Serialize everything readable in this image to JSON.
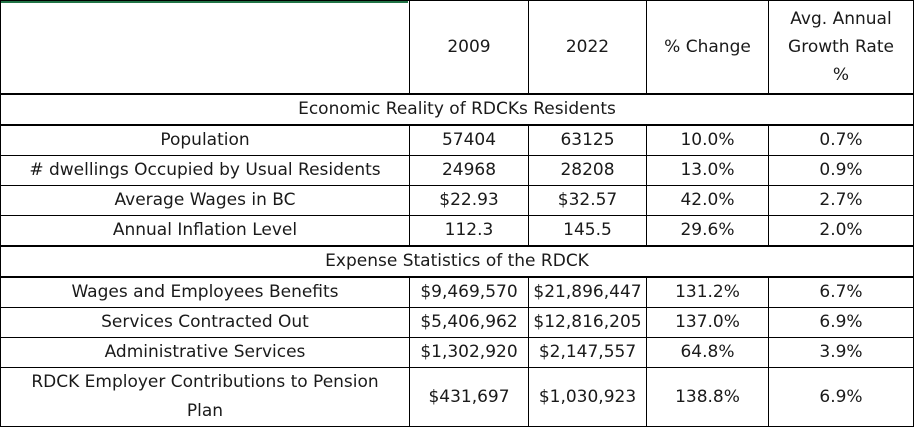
{
  "headers": {
    "label": "",
    "col2009": "2009",
    "col2022": "2022",
    "change": "% Change",
    "growth": "Avg. Annual Growth Rate %"
  },
  "section1": {
    "title": "Economic Reality of RDCKs Residents",
    "rows": [
      {
        "label": "Population",
        "v2009": "57404",
        "v2022": "63125",
        "change": "10.0%",
        "growth": "0.7%"
      },
      {
        "label": "# dwellings Occupied by Usual Residents",
        "v2009": "24968",
        "v2022": "28208",
        "change": "13.0%",
        "growth": "0.9%"
      },
      {
        "label": "Average Wages in BC",
        "v2009": "$22.93",
        "v2022": "$32.57",
        "change": "42.0%",
        "growth": "2.7%"
      },
      {
        "label": "Annual Inflation Level",
        "v2009": "112.3",
        "v2022": "145.5",
        "change": "29.6%",
        "growth": "2.0%"
      }
    ]
  },
  "section2": {
    "title": "Expense Statistics of the RDCK",
    "rows": [
      {
        "label": "Wages and Employees Benefits",
        "v2009": "$9,469,570",
        "v2022": "$21,896,447",
        "change": "131.2%",
        "growth": "6.7%"
      },
      {
        "label": "Services Contracted Out",
        "v2009": "$5,406,962",
        "v2022": "$12,816,205",
        "change": "137.0%",
        "growth": "6.9%"
      },
      {
        "label": "Administrative Services",
        "v2009": "$1,302,920",
        "v2022": "$2,147,557",
        "change": "64.8%",
        "growth": "3.9%"
      },
      {
        "label": "RDCK Employer Contributions to Pension Plan",
        "v2009": "$431,697",
        "v2022": "$1,030,923",
        "change": "138.8%",
        "growth": "6.9%"
      }
    ]
  }
}
